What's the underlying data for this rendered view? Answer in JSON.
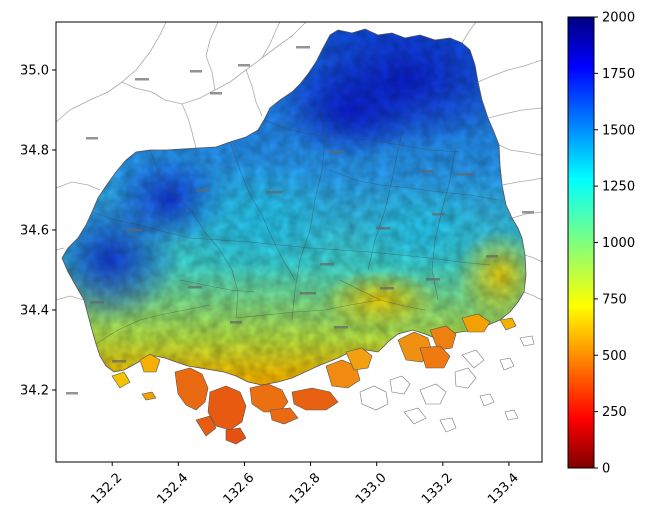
{
  "chart_data": {
    "type": "heatmap",
    "title": "",
    "xlabel": "",
    "ylabel": "",
    "xlim": [
      132.03,
      133.5
    ],
    "ylim": [
      34.02,
      35.12
    ],
    "x_ticks": [
      {
        "value": 132.2,
        "label": "132.2"
      },
      {
        "value": 132.4,
        "label": "132.4"
      },
      {
        "value": 132.6,
        "label": "132.6"
      },
      {
        "value": 132.8,
        "label": "132.8"
      },
      {
        "value": 133.0,
        "label": "133.0"
      },
      {
        "value": 133.2,
        "label": "133.2"
      },
      {
        "value": 133.4,
        "label": "133.4"
      }
    ],
    "y_ticks": [
      {
        "value": 34.2,
        "label": "34.2"
      },
      {
        "value": 34.4,
        "label": "34.4"
      },
      {
        "value": 34.6,
        "label": "34.6"
      },
      {
        "value": 34.8,
        "label": "34.8"
      },
      {
        "value": 35.0,
        "label": "35.0"
      }
    ],
    "colorbar": {
      "colormap": "jet",
      "min": 0,
      "max": 2000,
      "ticks": [
        {
          "value": 0,
          "label": "0"
        },
        {
          "value": 250,
          "label": "250"
        },
        {
          "value": 500,
          "label": "500"
        },
        {
          "value": 750,
          "label": "750"
        },
        {
          "value": 1000,
          "label": "1000"
        },
        {
          "value": 1250,
          "label": "1250"
        },
        {
          "value": 1500,
          "label": "1500"
        },
        {
          "value": 1750,
          "label": "1750"
        },
        {
          "value": 2000,
          "label": "2000"
        }
      ]
    },
    "grid": false
  }
}
